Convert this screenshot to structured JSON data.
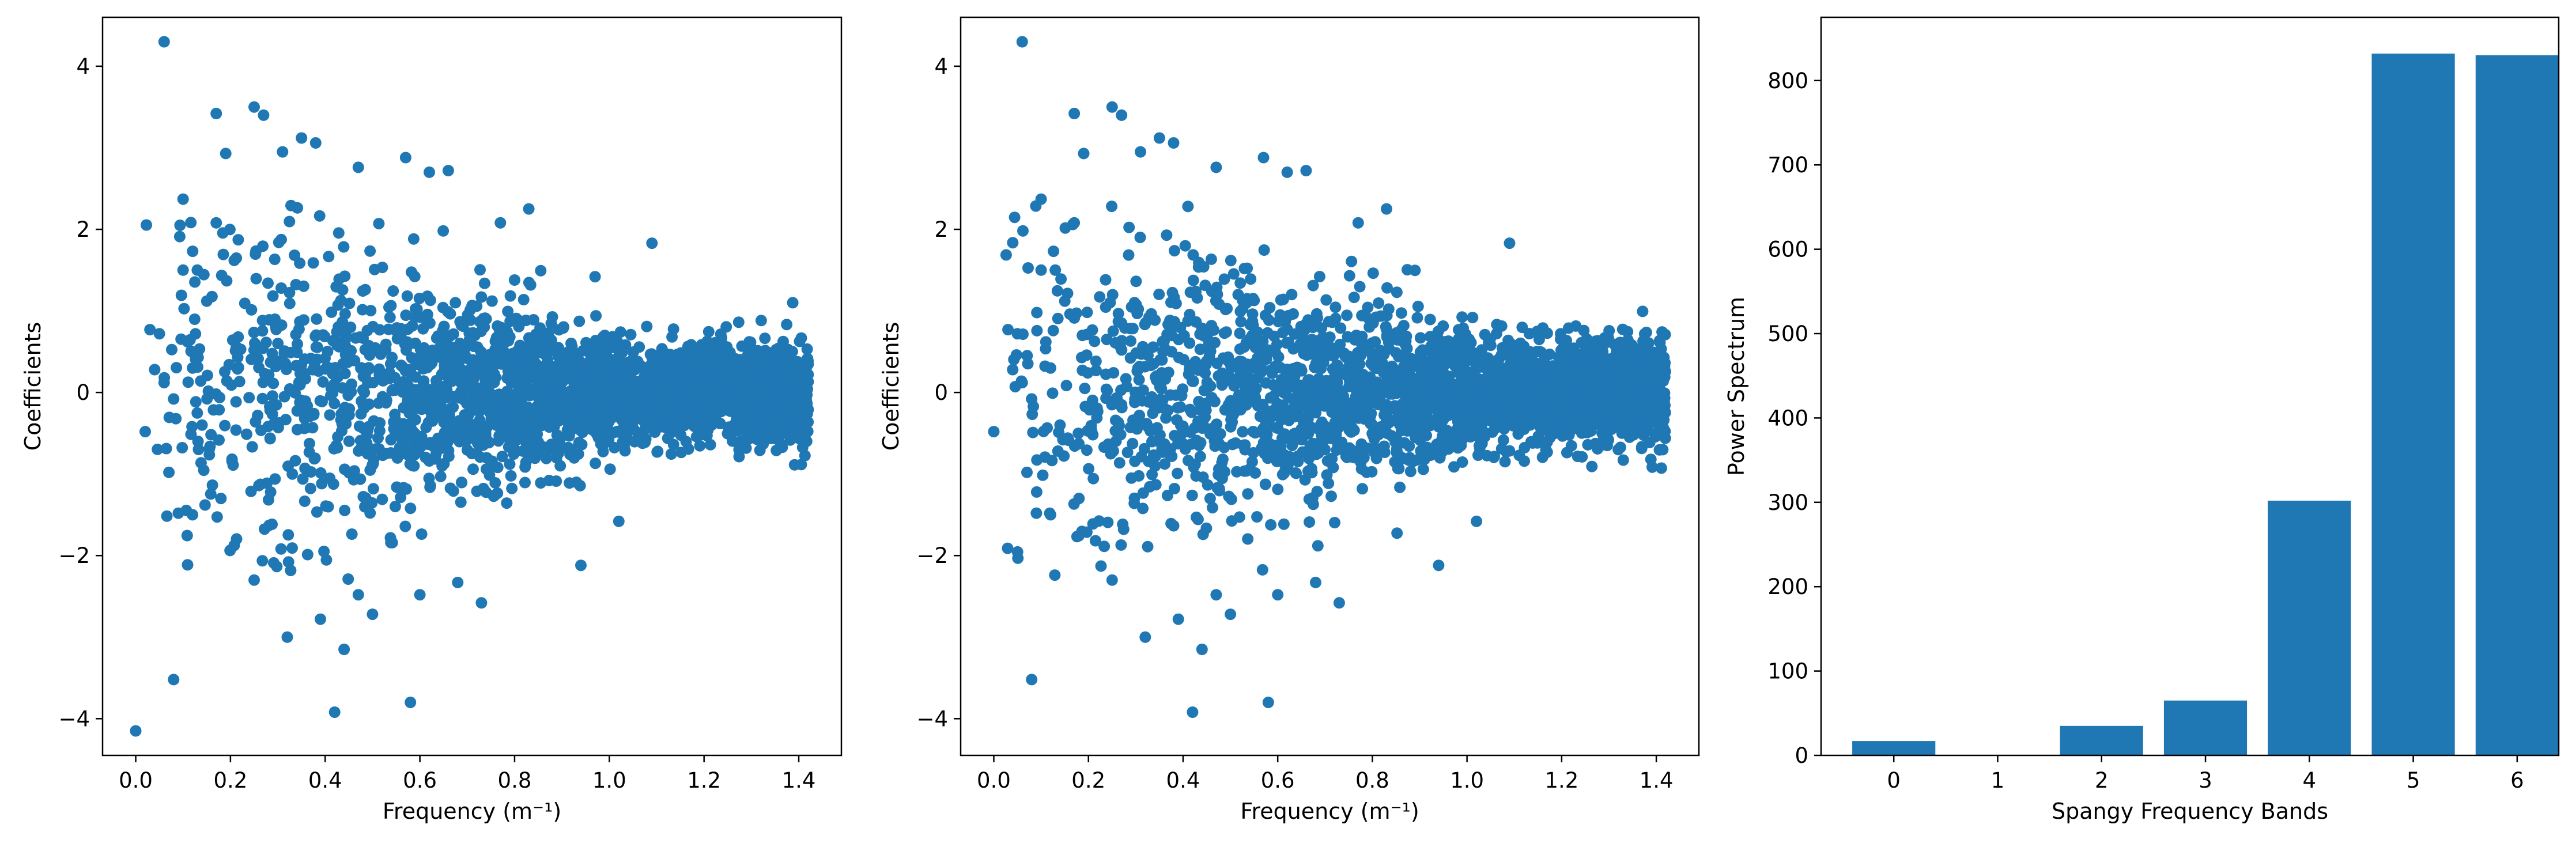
{
  "figure": {
    "background": "#ffffff",
    "mark_color": "#1f77b4",
    "axis_color": "#000000"
  },
  "chart_data": [
    {
      "type": "scatter",
      "title": "",
      "xlabel": "Frequency (m⁻¹)",
      "ylabel": "Coefficients",
      "xlim": [
        -0.07,
        1.49
      ],
      "ylim": [
        -4.45,
        4.6
      ],
      "xticks": [
        0.0,
        0.2,
        0.4,
        0.6,
        0.8,
        1.0,
        1.2,
        1.4
      ],
      "xtick_labels": [
        "0.0",
        "0.2",
        "0.4",
        "0.6",
        "0.8",
        "1.0",
        "1.2",
        "1.4"
      ],
      "yticks": [
        -4,
        -2,
        0,
        2,
        4
      ],
      "ytick_labels": [
        "−4",
        "−2",
        "0",
        "2",
        "4"
      ],
      "grid": false,
      "legend": "none",
      "series": [
        {
          "points": [
            [
              0.0,
              -4.15
            ],
            [
              0.06,
              4.3
            ],
            [
              0.08,
              -3.52
            ],
            [
              0.25,
              3.5
            ],
            [
              0.17,
              3.42
            ],
            [
              0.27,
              3.4
            ],
            [
              0.35,
              3.12
            ],
            [
              0.38,
              3.06
            ],
            [
              0.19,
              2.93
            ],
            [
              0.31,
              2.95
            ],
            [
              0.47,
              2.76
            ],
            [
              0.57,
              2.88
            ],
            [
              0.62,
              2.7
            ],
            [
              0.66,
              2.72
            ],
            [
              0.83,
              2.25
            ],
            [
              1.09,
              1.83
            ],
            [
              0.1,
              2.37
            ],
            [
              0.17,
              2.08
            ],
            [
              0.77,
              2.08
            ],
            [
              0.32,
              -3.0
            ],
            [
              0.39,
              -2.78
            ],
            [
              0.44,
              -3.15
            ],
            [
              0.42,
              -3.92
            ],
            [
              0.58,
              -3.8
            ],
            [
              0.5,
              -2.72
            ],
            [
              0.47,
              -2.48
            ],
            [
              0.73,
              -2.58
            ],
            [
              0.94,
              -2.12
            ],
            [
              1.02,
              -1.58
            ],
            [
              0.6,
              -2.48
            ],
            [
              0.68,
              -2.33
            ],
            [
              0.25,
              -2.3
            ],
            [
              0.02,
              -0.48
            ],
            [
              0.03,
              0.77
            ],
            [
              0.05,
              0.72
            ],
            [
              0.07,
              -0.98
            ],
            [
              0.09,
              -1.48
            ],
            [
              0.12,
              -1.5
            ],
            [
              0.1,
              1.5
            ],
            [
              0.13,
              1.5
            ],
            [
              0.14,
              -0.4
            ],
            [
              0.11,
              0.62
            ],
            [
              0.04,
              0.28
            ],
            [
              0.06,
              0.12
            ],
            [
              0.08,
              -0.08
            ],
            [
              0.12,
              0.3
            ],
            [
              0.15,
              1.12
            ],
            [
              0.18,
              -1.3
            ]
          ]
        }
      ]
    },
    {
      "type": "scatter",
      "title": "",
      "xlabel": "Frequency (m⁻¹)",
      "ylabel": "Coefficients",
      "xlim": [
        -0.07,
        1.49
      ],
      "ylim": [
        -4.45,
        4.6
      ],
      "xticks": [
        0.0,
        0.2,
        0.4,
        0.6,
        0.8,
        1.0,
        1.2,
        1.4
      ],
      "xtick_labels": [
        "0.0",
        "0.2",
        "0.4",
        "0.6",
        "0.8",
        "1.0",
        "1.2",
        "1.4"
      ],
      "yticks": [
        -4,
        -2,
        0,
        2,
        4
      ],
      "ytick_labels": [
        "−4",
        "−2",
        "0",
        "2",
        "4"
      ],
      "grid": false,
      "legend": "none",
      "series": [
        {
          "points": [
            [
              0.06,
              4.3
            ],
            [
              0.08,
              -3.52
            ],
            [
              0.25,
              3.5
            ],
            [
              0.17,
              3.42
            ],
            [
              0.27,
              3.4
            ],
            [
              0.35,
              3.12
            ],
            [
              0.38,
              3.06
            ],
            [
              0.19,
              2.93
            ],
            [
              0.31,
              2.95
            ],
            [
              0.47,
              2.76
            ],
            [
              0.57,
              2.88
            ],
            [
              0.62,
              2.7
            ],
            [
              0.66,
              2.72
            ],
            [
              0.83,
              2.25
            ],
            [
              1.09,
              1.83
            ],
            [
              0.1,
              2.37
            ],
            [
              0.17,
              2.08
            ],
            [
              0.77,
              2.08
            ],
            [
              0.32,
              -3.0
            ],
            [
              0.39,
              -2.78
            ],
            [
              0.44,
              -3.15
            ],
            [
              0.42,
              -3.92
            ],
            [
              0.58,
              -3.8
            ],
            [
              0.5,
              -2.72
            ],
            [
              0.47,
              -2.48
            ],
            [
              0.73,
              -2.58
            ],
            [
              0.94,
              -2.12
            ],
            [
              1.02,
              -1.58
            ],
            [
              0.6,
              -2.48
            ],
            [
              0.68,
              -2.33
            ],
            [
              0.25,
              -2.3
            ],
            [
              0.0,
              -0.48
            ],
            [
              0.03,
              0.77
            ],
            [
              0.05,
              0.72
            ],
            [
              0.07,
              -0.98
            ],
            [
              0.09,
              -1.48
            ],
            [
              0.12,
              -1.5
            ],
            [
              0.1,
              1.5
            ],
            [
              0.13,
              1.5
            ],
            [
              0.14,
              -0.4
            ],
            [
              0.11,
              0.62
            ],
            [
              0.04,
              0.28
            ],
            [
              0.06,
              0.12
            ],
            [
              0.08,
              -0.08
            ],
            [
              0.12,
              0.3
            ],
            [
              0.15,
              1.12
            ],
            [
              0.18,
              -1.3
            ]
          ]
        }
      ]
    },
    {
      "type": "bar",
      "title": "",
      "xlabel": "Spangy Frequency Bands",
      "ylabel": "Power Spectrum",
      "categories": [
        "0",
        "1",
        "2",
        "3",
        "4",
        "5",
        "6"
      ],
      "values": [
        17,
        0,
        35,
        65,
        302,
        832,
        830
      ],
      "xlim": [
        -0.7,
        6.4
      ],
      "ylim": [
        0,
        875
      ],
      "yticks": [
        0,
        100,
        200,
        300,
        400,
        500,
        600,
        700,
        800
      ],
      "ytick_labels": [
        "0",
        "100",
        "200",
        "300",
        "400",
        "500",
        "600",
        "700",
        "800"
      ],
      "grid": false,
      "legend": "none"
    }
  ]
}
